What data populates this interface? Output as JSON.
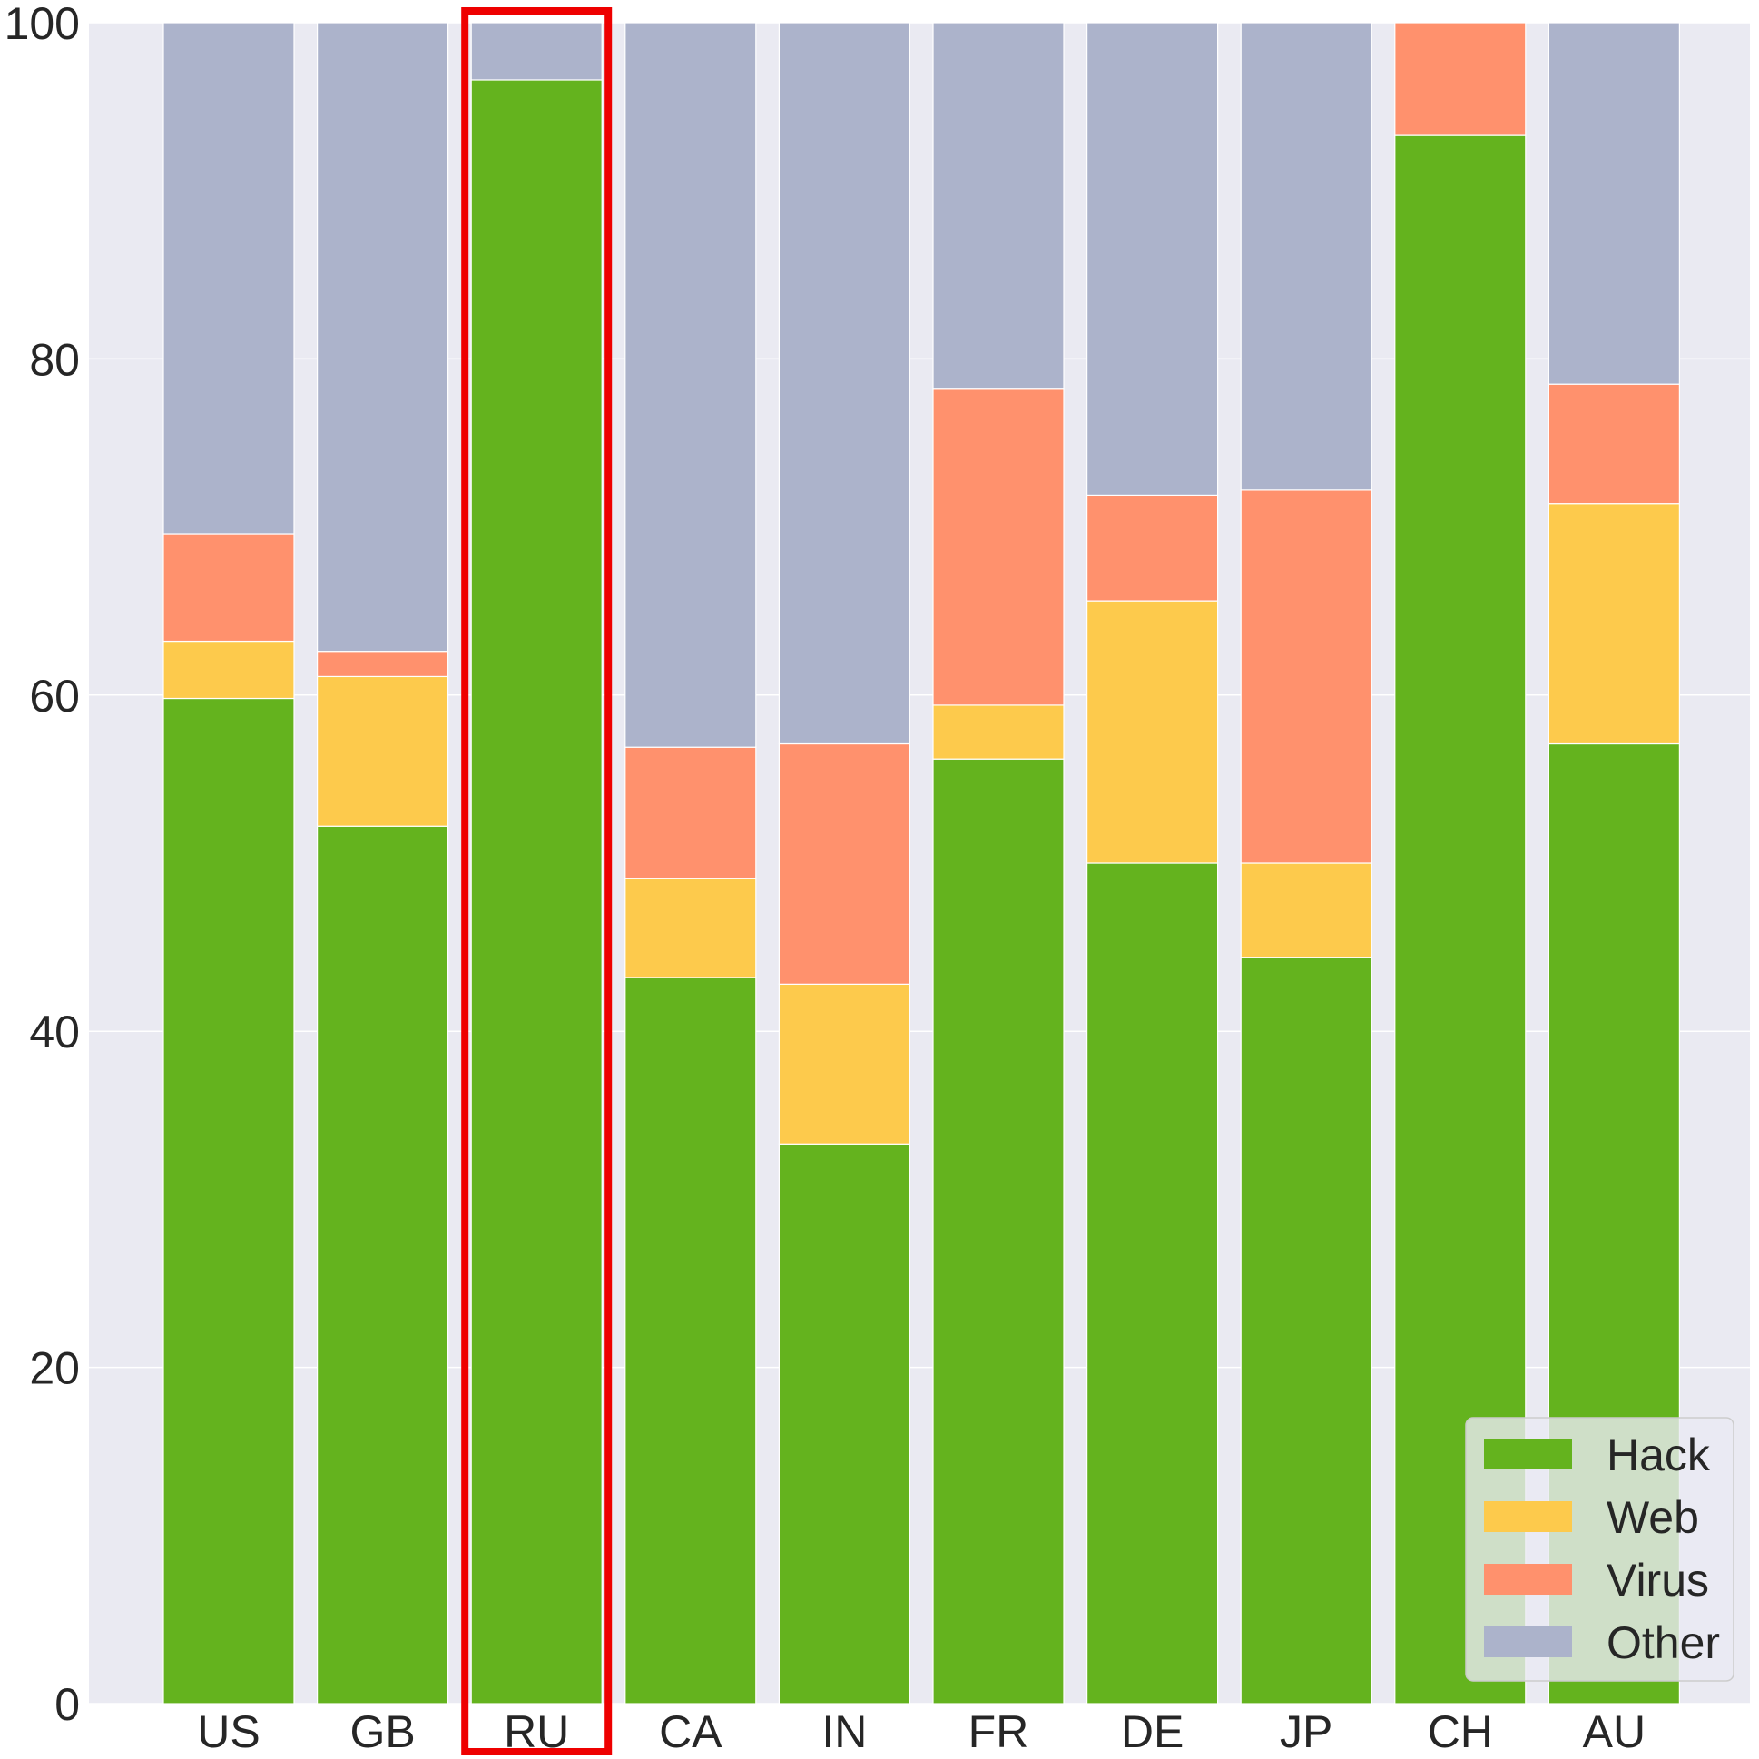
{
  "chart_data": {
    "type": "bar",
    "stacked": true,
    "categories": [
      "US",
      "GB",
      "RU",
      "CA",
      "IN",
      "FR",
      "DE",
      "JP",
      "CH",
      "AU"
    ],
    "series": [
      {
        "name": "Hack",
        "color": "#64b31e",
        "values": [
          59.8,
          52.2,
          96.6,
          43.2,
          33.3,
          56.2,
          50.0,
          44.4,
          93.3,
          57.1
        ]
      },
      {
        "name": "Web",
        "color": "#fdca4c",
        "values": [
          3.4,
          8.9,
          0.0,
          5.9,
          9.5,
          3.2,
          15.6,
          5.6,
          0.0,
          14.3
        ]
      },
      {
        "name": "Virus",
        "color": "#ff916d",
        "values": [
          6.4,
          1.5,
          0.0,
          7.8,
          14.3,
          18.8,
          6.3,
          22.2,
          6.7,
          7.1
        ]
      },
      {
        "name": "Other",
        "color": "#acb3cb",
        "values": [
          30.4,
          37.4,
          3.4,
          43.1,
          42.9,
          21.8,
          28.1,
          27.8,
          0.0,
          21.5
        ]
      }
    ],
    "ylim": [
      0,
      100
    ],
    "yticks": [
      0,
      20,
      40,
      60,
      80,
      100
    ],
    "xlabel": "",
    "ylabel": "",
    "title": "",
    "grid": true,
    "legend_position": "bottom-right",
    "highlight": {
      "category": "RU",
      "color": "#ee0000"
    },
    "style": {
      "plot_background": "#eaeaf2",
      "grid_color": "#ffffff",
      "text_color": "#262626"
    }
  }
}
